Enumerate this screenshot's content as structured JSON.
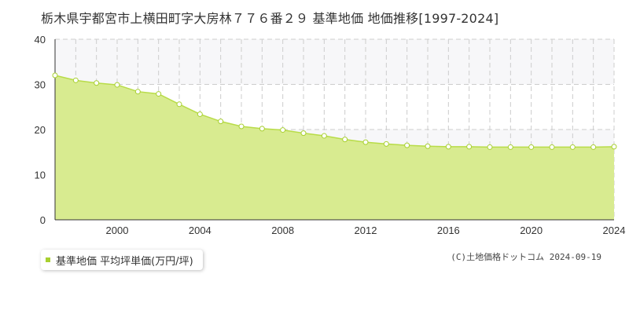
{
  "title": "栃木県宇都宮市上横田町字大房林７７６番２９ 基準地価 地価推移[1997-2024]",
  "legend": {
    "label": "基準地価 平均坪単価(万円/坪)",
    "color": "#a8d030"
  },
  "copyright": "(C)土地価格ドットコム 2024-09-19",
  "colors": {
    "area_fill": "#d8eb90",
    "line": "#b8dc48",
    "marker_fill": "#ffffff",
    "marker_stroke": "#a8d030",
    "band": "#f7f7f9",
    "grid": "#cccccc"
  },
  "chart_data": {
    "type": "area",
    "title": "",
    "xlabel": "",
    "ylabel": "",
    "xlim": [
      1997,
      2024
    ],
    "ylim": [
      0,
      40
    ],
    "x_ticks": [
      "2000",
      "2004",
      "2008",
      "2012",
      "2016",
      "2020",
      "2024"
    ],
    "y_ticks": [
      "0",
      "10",
      "20",
      "30",
      "40"
    ],
    "grid": true,
    "legend_position": "bottom-left",
    "series": [
      {
        "name": "基準地価 平均坪単価(万円/坪)",
        "x": [
          1997,
          1998,
          1999,
          2000,
          2001,
          2002,
          2003,
          2004,
          2005,
          2006,
          2007,
          2008,
          2009,
          2010,
          2011,
          2012,
          2013,
          2014,
          2015,
          2016,
          2017,
          2018,
          2019,
          2020,
          2021,
          2022,
          2023,
          2024
        ],
        "values": [
          32.0,
          30.9,
          30.3,
          29.9,
          28.4,
          27.9,
          25.6,
          23.4,
          21.8,
          20.7,
          20.2,
          19.9,
          19.2,
          18.6,
          17.8,
          17.2,
          16.8,
          16.5,
          16.3,
          16.2,
          16.2,
          16.1,
          16.1,
          16.1,
          16.1,
          16.1,
          16.1,
          16.2
        ]
      }
    ]
  }
}
